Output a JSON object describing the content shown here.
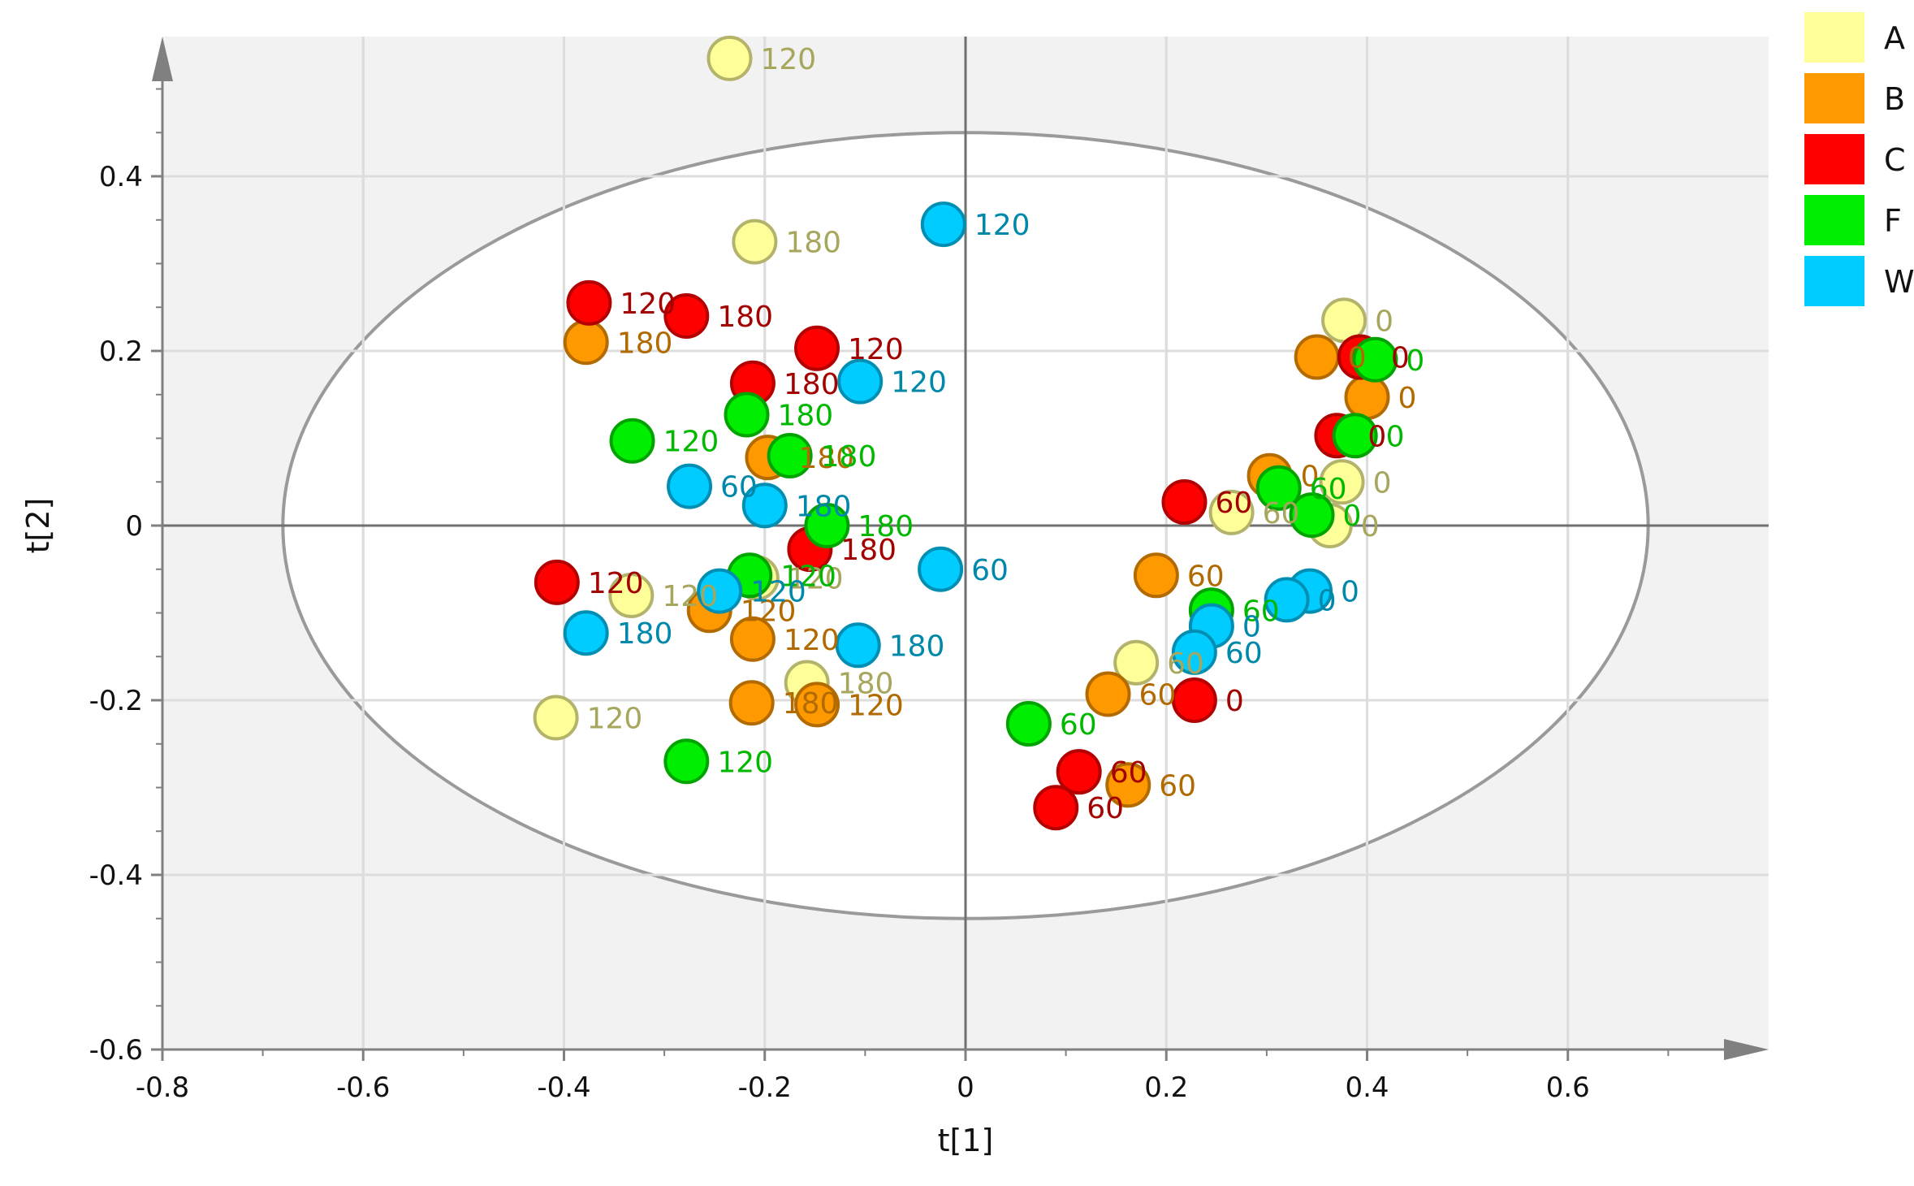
{
  "chart_data": {
    "type": "scatter",
    "title": "",
    "xlabel": "t[1]",
    "ylabel": "t[2]",
    "xlim": [
      -0.8,
      0.8
    ],
    "ylim": [
      -0.6,
      0.56
    ],
    "x_ticks": [
      "-0.8",
      "-0.6",
      "-0.4",
      "-0.2",
      "0",
      "0.2",
      "0.4",
      "0.6"
    ],
    "y_ticks": [
      "-0.6",
      "-0.4",
      "-0.2",
      "0",
      "0.2",
      "0.4"
    ],
    "grid": true,
    "ellipse": {
      "cx": 0,
      "cy": 0,
      "rx": 0.68,
      "ry": 0.45
    },
    "legend_position": "top-right",
    "series": [
      {
        "name": "A",
        "color": "#FFFF99",
        "edge": "#B3B36B",
        "label_color": "#A6A65C",
        "points": [
          {
            "x": -0.235,
            "y": 0.535,
            "label": "120"
          },
          {
            "x": -0.21,
            "y": 0.325,
            "label": "180"
          },
          {
            "x": 0.377,
            "y": 0.235,
            "label": "0"
          },
          {
            "x": 0.375,
            "y": 0.05,
            "label": "0"
          },
          {
            "x": 0.265,
            "y": 0.015,
            "label": "60"
          },
          {
            "x": 0.363,
            "y": 0.0,
            "label": "0"
          },
          {
            "x": -0.333,
            "y": -0.08,
            "label": "120"
          },
          {
            "x": -0.208,
            "y": -0.06,
            "label": "120"
          },
          {
            "x": -0.158,
            "y": -0.18,
            "label": "180"
          },
          {
            "x": 0.17,
            "y": -0.157,
            "label": "60"
          },
          {
            "x": -0.408,
            "y": -0.22,
            "label": "120"
          }
        ]
      },
      {
        "name": "B",
        "color": "#FF9900",
        "edge": "#B36B00",
        "label_color": "#B06A00",
        "points": [
          {
            "x": -0.378,
            "y": 0.21,
            "label": "180"
          },
          {
            "x": 0.35,
            "y": 0.193,
            "label": "0"
          },
          {
            "x": 0.4,
            "y": 0.147,
            "label": "0"
          },
          {
            "x": -0.197,
            "y": 0.078,
            "label": "180"
          },
          {
            "x": 0.303,
            "y": 0.057,
            "label": "0"
          },
          {
            "x": 0.19,
            "y": -0.057,
            "label": "60"
          },
          {
            "x": -0.255,
            "y": -0.097,
            "label": "120"
          },
          {
            "x": -0.212,
            "y": -0.13,
            "label": "120"
          },
          {
            "x": 0.142,
            "y": -0.193,
            "label": "60"
          },
          {
            "x": -0.213,
            "y": -0.203,
            "label": "180"
          },
          {
            "x": -0.148,
            "y": -0.205,
            "label": "120"
          },
          {
            "x": 0.162,
            "y": -0.297,
            "label": "60"
          }
        ]
      },
      {
        "name": "C",
        "color": "#FF0000",
        "edge": "#B30000",
        "label_color": "#A30000",
        "points": [
          {
            "x": -0.375,
            "y": 0.255,
            "label": "120"
          },
          {
            "x": -0.278,
            "y": 0.24,
            "label": "180"
          },
          {
            "x": -0.148,
            "y": 0.203,
            "label": "120"
          },
          {
            "x": -0.212,
            "y": 0.163,
            "label": "180"
          },
          {
            "x": 0.393,
            "y": 0.193,
            "label": "0"
          },
          {
            "x": 0.37,
            "y": 0.103,
            "label": "0"
          },
          {
            "x": 0.218,
            "y": 0.027,
            "label": "60"
          },
          {
            "x": -0.155,
            "y": -0.027,
            "label": "180"
          },
          {
            "x": -0.407,
            "y": -0.065,
            "label": "120"
          },
          {
            "x": 0.228,
            "y": -0.2,
            "label": "0"
          },
          {
            "x": 0.113,
            "y": -0.282,
            "label": "60"
          },
          {
            "x": 0.09,
            "y": -0.323,
            "label": "60"
          }
        ]
      },
      {
        "name": "F",
        "color": "#00EE00",
        "edge": "#00A300",
        "label_color": "#00B800",
        "points": [
          {
            "x": 0.408,
            "y": 0.19,
            "label": "0"
          },
          {
            "x": -0.218,
            "y": 0.127,
            "label": "180"
          },
          {
            "x": -0.332,
            "y": 0.097,
            "label": "120"
          },
          {
            "x": -0.175,
            "y": 0.08,
            "label": "180"
          },
          {
            "x": 0.388,
            "y": 0.103,
            "label": "0"
          },
          {
            "x": 0.312,
            "y": 0.043,
            "label": "60"
          },
          {
            "x": 0.345,
            "y": 0.012,
            "label": "0"
          },
          {
            "x": -0.138,
            "y": 0.0,
            "label": "180"
          },
          {
            "x": -0.215,
            "y": -0.057,
            "label": "120"
          },
          {
            "x": 0.245,
            "y": -0.097,
            "label": "60"
          },
          {
            "x": 0.063,
            "y": -0.227,
            "label": "60"
          },
          {
            "x": -0.278,
            "y": -0.27,
            "label": "120"
          }
        ]
      },
      {
        "name": "W",
        "color": "#00CCFF",
        "edge": "#008FB3",
        "label_color": "#0088AA",
        "points": [
          {
            "x": -0.022,
            "y": 0.345,
            "label": "120"
          },
          {
            "x": -0.105,
            "y": 0.165,
            "label": "120"
          },
          {
            "x": -0.275,
            "y": 0.045,
            "label": "60"
          },
          {
            "x": -0.2,
            "y": 0.023,
            "label": "180"
          },
          {
            "x": -0.025,
            "y": -0.05,
            "label": "60"
          },
          {
            "x": 0.343,
            "y": -0.075,
            "label": "0"
          },
          {
            "x": 0.32,
            "y": -0.085,
            "label": "0"
          },
          {
            "x": -0.245,
            "y": -0.075,
            "label": "120"
          },
          {
            "x": 0.245,
            "y": -0.115,
            "label": "0"
          },
          {
            "x": -0.378,
            "y": -0.123,
            "label": "180"
          },
          {
            "x": -0.107,
            "y": -0.137,
            "label": "180"
          },
          {
            "x": 0.228,
            "y": -0.145,
            "label": "60"
          }
        ]
      }
    ]
  }
}
